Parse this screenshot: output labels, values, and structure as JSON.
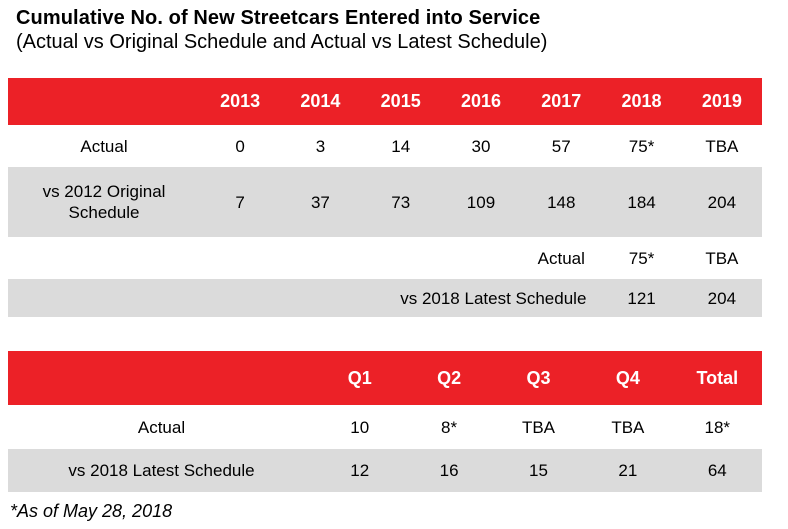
{
  "page": {
    "title": "Cumulative No. of New Streetcars Entered into Service",
    "subtitle": "(Actual vs Original Schedule and Actual vs Latest Schedule)",
    "footnote": "*As of May 28, 2018"
  },
  "colors": {
    "header_red": "#EC2127",
    "row_gray": "#DBDBDB",
    "header_text": "#FFFFFF",
    "body_text": "#000000"
  },
  "chart_data": [
    {
      "type": "table",
      "name": "cumulative-annual",
      "columns": [
        "",
        "2013",
        "2014",
        "2015",
        "2016",
        "2017",
        "2018",
        "2019"
      ],
      "rows": [
        [
          "Actual",
          "0",
          "3",
          "14",
          "30",
          "57",
          "75*",
          "TBA"
        ],
        [
          "vs 2012 Original Schedule",
          "7",
          "37",
          "73",
          "109",
          "148",
          "184",
          "204"
        ],
        [
          "",
          "",
          "",
          "",
          "",
          "Actual",
          "75*",
          "TBA"
        ],
        [
          "vs 2018 Latest Schedule",
          "121",
          "204"
        ]
      ],
      "row_layouts": [
        [
          1,
          1,
          1,
          1,
          1,
          1,
          1,
          1
        ],
        [
          1,
          1,
          1,
          1,
          1,
          1,
          1,
          1
        ],
        [
          1,
          1,
          1,
          1,
          1,
          1,
          1,
          1
        ],
        [
          6,
          1,
          1
        ]
      ],
      "row_backgrounds": [
        "white",
        "gray",
        "white",
        "gray"
      ],
      "layout_hints": "Header row red with white bold text; row 3 'Actual' sits in the 2017 column; row 4 label is right-aligned spanning through the 2017 column"
    },
    {
      "type": "table",
      "name": "quarterly-2018",
      "columns": [
        "",
        "Q1",
        "Q2",
        "Q3",
        "Q4",
        "Total"
      ],
      "rows": [
        [
          "Actual",
          "10",
          "8*",
          "TBA",
          "TBA",
          "18*"
        ],
        [
          "vs 2018 Latest Schedule",
          "12",
          "16",
          "15",
          "21",
          "64"
        ]
      ],
      "row_backgrounds": [
        "white",
        "gray"
      ],
      "layout_hints": "Header row red with white bold text; wider label column than annual table"
    }
  ]
}
